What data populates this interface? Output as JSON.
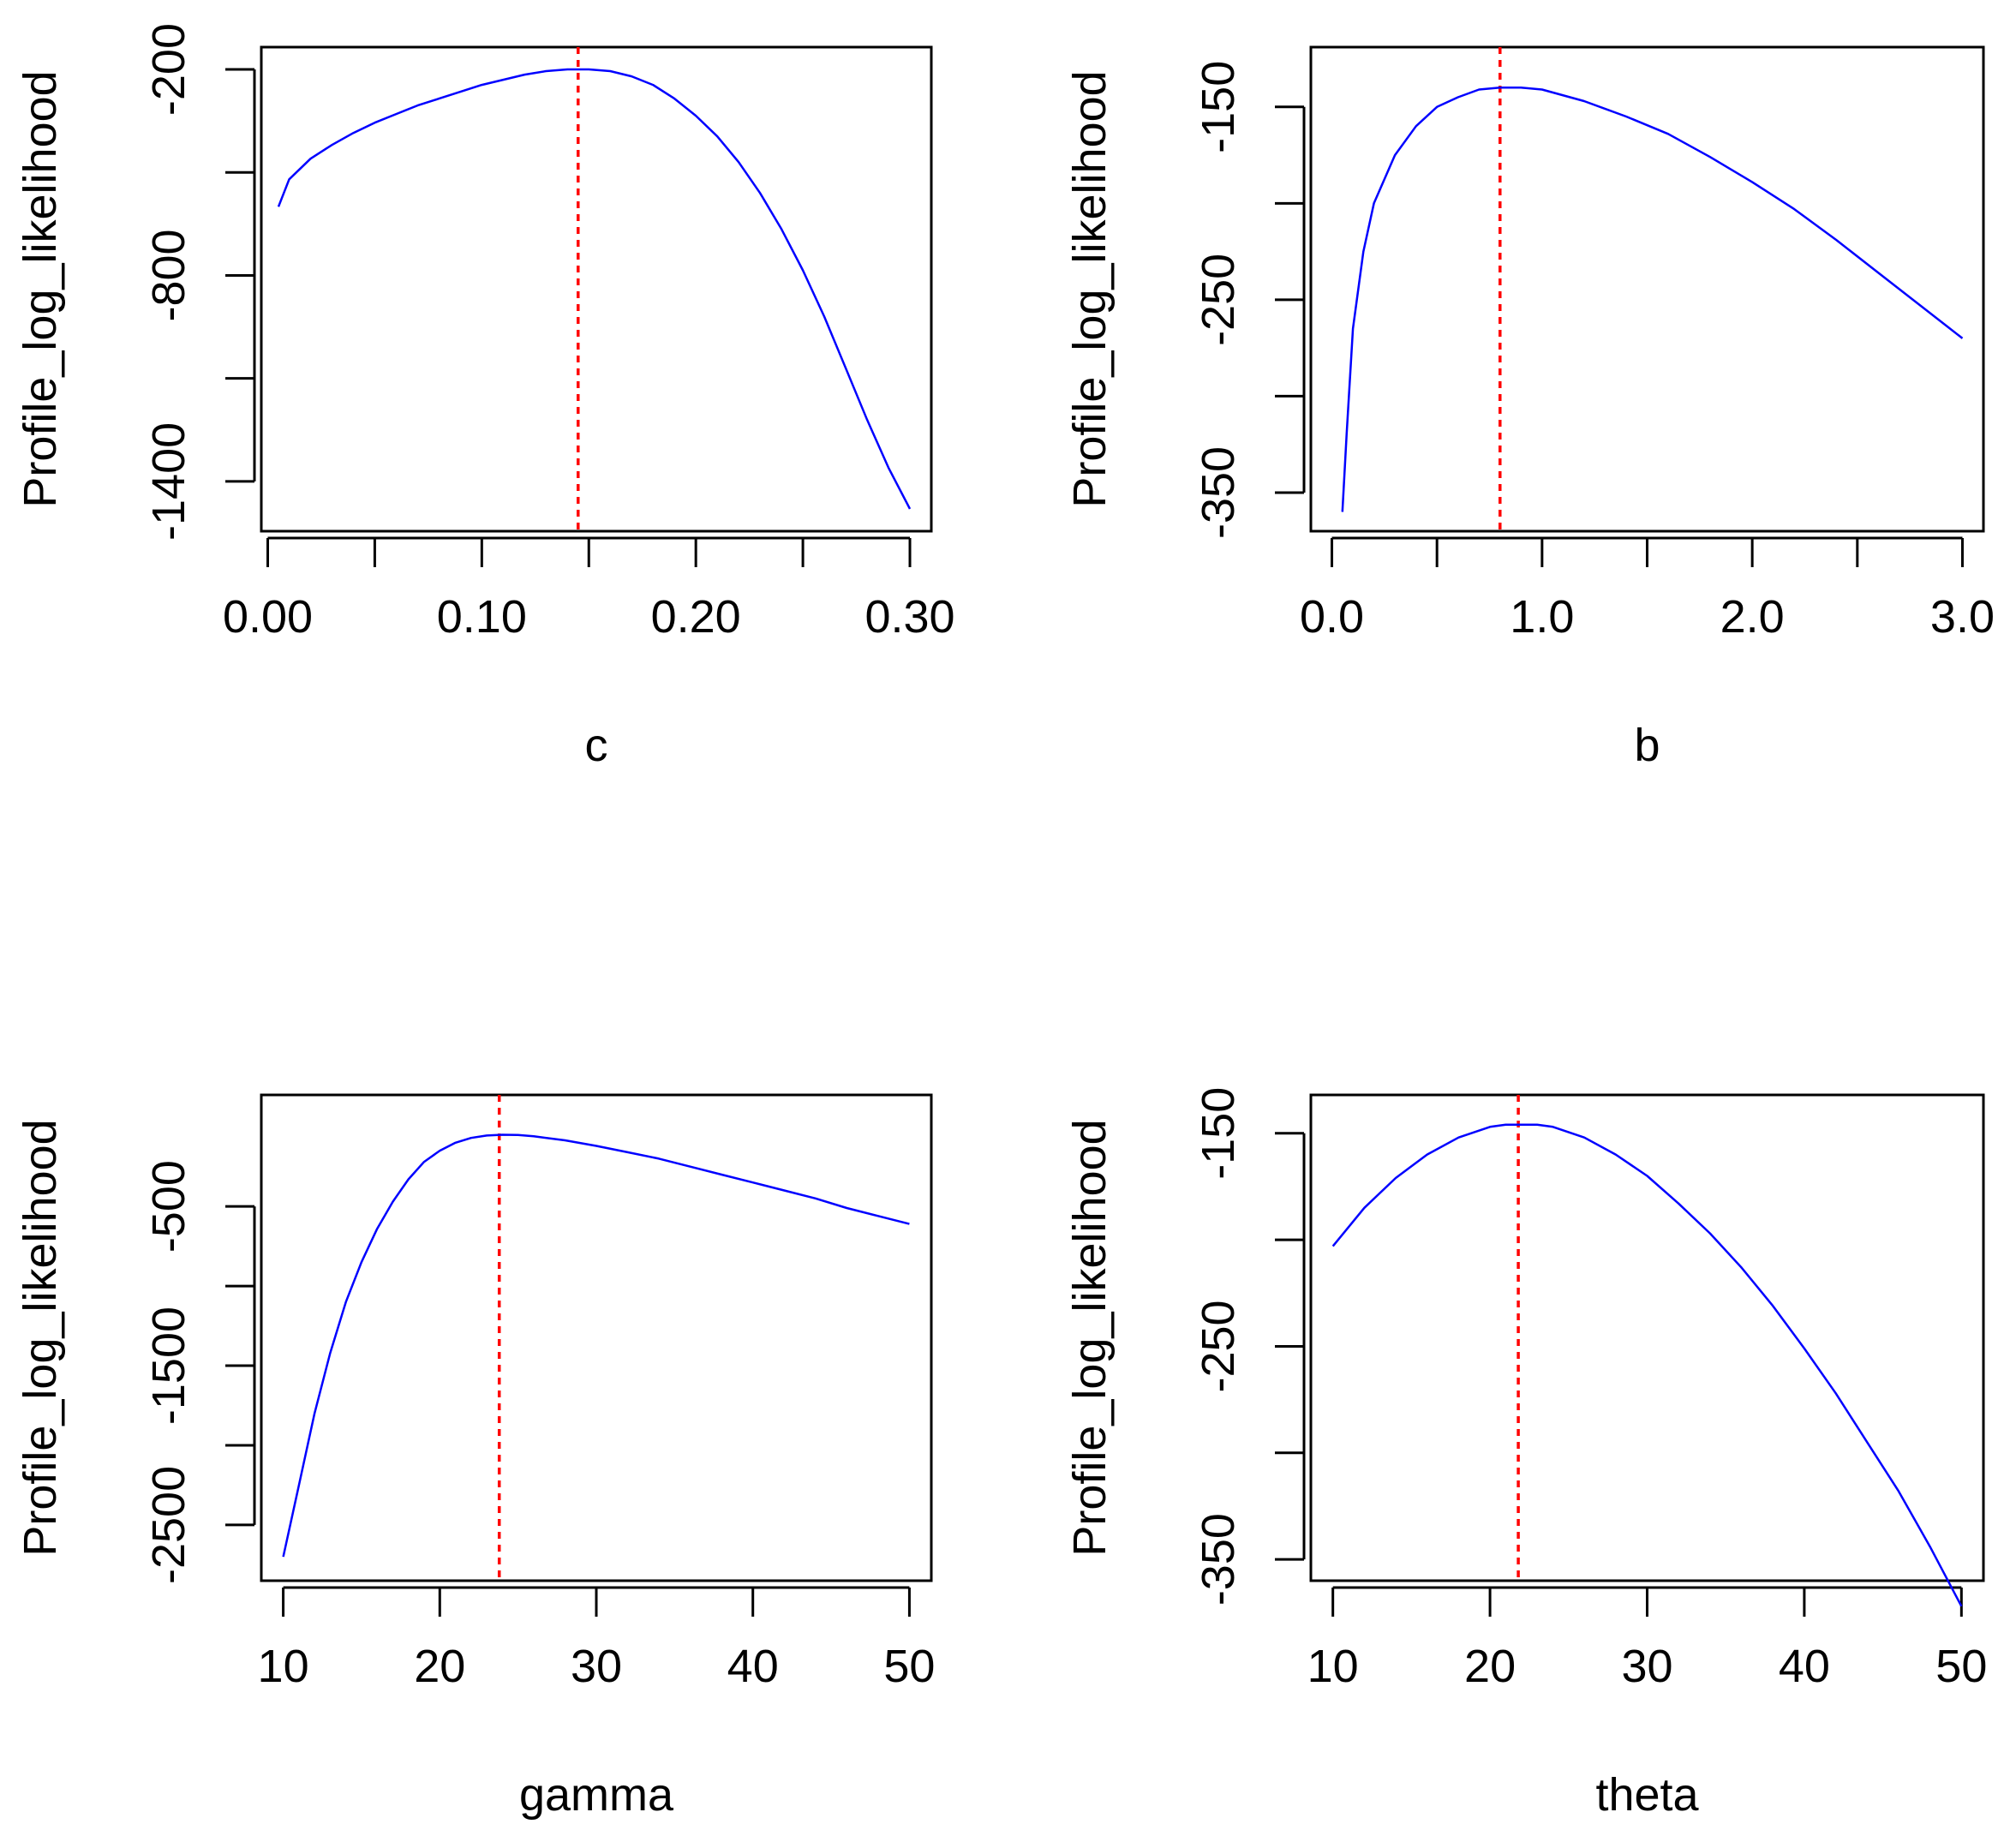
{
  "colors": {
    "curve": "#0000ff",
    "mle_line": "#ff0000",
    "axes": "#000000",
    "background": "#ffffff"
  },
  "chart_data": [
    {
      "type": "line",
      "title": "",
      "xlabel": "c",
      "ylabel": "Profile_log_likelihood",
      "xlim": [
        -0.003,
        0.31
      ],
      "ylim": [
        -1545,
        -135
      ],
      "xticks": [
        0.0,
        0.05,
        0.1,
        0.15,
        0.2,
        0.25,
        0.3
      ],
      "xtick_labels": [
        "0.00",
        "",
        "0.10",
        "",
        "0.20",
        "",
        "0.30"
      ],
      "yticks": [
        -200,
        -500,
        -800,
        -1100,
        -1400
      ],
      "ytick_labels": [
        "-200",
        "",
        "-800",
        "",
        "-1400"
      ],
      "mle": 0.145,
      "x": [
        0.005,
        0.01,
        0.02,
        0.03,
        0.04,
        0.05,
        0.06,
        0.07,
        0.08,
        0.09,
        0.1,
        0.11,
        0.12,
        0.13,
        0.14,
        0.145,
        0.15,
        0.16,
        0.17,
        0.18,
        0.19,
        0.2,
        0.21,
        0.22,
        0.23,
        0.24,
        0.25,
        0.26,
        0.27,
        0.28,
        0.29,
        0.3
      ],
      "y": [
        -600,
        -520,
        -460,
        -420,
        -385,
        -355,
        -330,
        -305,
        -285,
        -265,
        -245,
        -230,
        -215,
        -205,
        -200,
        -200,
        -200,
        -205,
        -220,
        -245,
        -285,
        -335,
        -395,
        -470,
        -560,
        -665,
        -785,
        -920,
        -1070,
        -1220,
        -1360,
        -1480
      ]
    },
    {
      "type": "line",
      "title": "",
      "xlabel": "b",
      "ylabel": "Profile_log_likelihood",
      "xlim": [
        -0.1,
        3.1
      ],
      "ylim": [
        -370,
        -119
      ],
      "xticks": [
        0.0,
        0.5,
        1.0,
        1.5,
        2.0,
        2.5,
        3.0
      ],
      "xtick_labels": [
        "0.0",
        "",
        "1.0",
        "",
        "2.0",
        "",
        "3.0"
      ],
      "yticks": [
        -150,
        -200,
        -250,
        -300,
        -350
      ],
      "ytick_labels": [
        "-150",
        "",
        "-250",
        "",
        "-350"
      ],
      "mle": 0.8,
      "x": [
        0.05,
        0.07,
        0.1,
        0.15,
        0.2,
        0.3,
        0.4,
        0.5,
        0.6,
        0.7,
        0.8,
        0.9,
        1.0,
        1.2,
        1.4,
        1.6,
        1.8,
        2.0,
        2.2,
        2.4,
        2.6,
        2.8,
        3.0
      ],
      "y": [
        -360,
        -320,
        -265,
        -225,
        -200,
        -175,
        -160,
        -150,
        -145,
        -141,
        -140,
        -140,
        -141,
        -147,
        -155,
        -164,
        -176,
        -189,
        -203,
        -219,
        -236,
        -253,
        -270
      ]
    },
    {
      "type": "line",
      "title": "",
      "xlabel": "gamma",
      "ylabel": "Profile_log_likelihood",
      "xlim": [
        8.6,
        51.4
      ],
      "ylim": [
        -2850,
        200
      ],
      "xticks": [
        10,
        20,
        30,
        40,
        50
      ],
      "xtick_labels": [
        "10",
        "20",
        "30",
        "40",
        "50"
      ],
      "yticks": [
        -500,
        -1000,
        -1500,
        -2000,
        -2500
      ],
      "ytick_labels": [
        "-500",
        "",
        "-1500",
        "",
        "-2500"
      ],
      "mle": 23.8,
      "x": [
        10,
        11,
        12,
        13,
        14,
        15,
        16,
        17,
        18,
        19,
        20,
        21,
        22,
        23,
        24,
        25,
        26,
        28,
        30,
        32,
        34,
        36,
        38,
        40,
        42,
        44,
        46,
        48,
        50
      ],
      "y": [
        -2700,
        -2250,
        -1800,
        -1420,
        -1100,
        -850,
        -640,
        -470,
        -330,
        -220,
        -150,
        -100,
        -70,
        -55,
        -50,
        -52,
        -60,
        -85,
        -120,
        -160,
        -200,
        -250,
        -300,
        -350,
        -400,
        -450,
        -510,
        -560,
        -610
      ]
    },
    {
      "type": "line",
      "title": "",
      "xlabel": "theta",
      "ylabel": "Profile_log_likelihood",
      "xlim": [
        8.6,
        51.4
      ],
      "ylim": [
        -360,
        -132
      ],
      "xticks": [
        10,
        20,
        30,
        40,
        50
      ],
      "xtick_labels": [
        "10",
        "20",
        "30",
        "40",
        "50"
      ],
      "yticks": [
        -150,
        -200,
        -250,
        -300,
        -350
      ],
      "ytick_labels": [
        "-150",
        "",
        "-250",
        "",
        "-350"
      ],
      "mle": 21.8,
      "x": [
        10,
        12,
        14,
        16,
        18,
        20,
        21,
        22,
        23,
        24,
        26,
        28,
        30,
        32,
        34,
        36,
        38,
        40,
        42,
        44,
        46,
        48,
        50
      ],
      "y": [
        -203,
        -185,
        -171,
        -160,
        -152,
        -147,
        -146,
        -146,
        -146,
        -147,
        -152,
        -160,
        -170,
        -183,
        -197,
        -213,
        -231,
        -251,
        -272,
        -295,
        -318,
        -344,
        -372
      ]
    }
  ]
}
